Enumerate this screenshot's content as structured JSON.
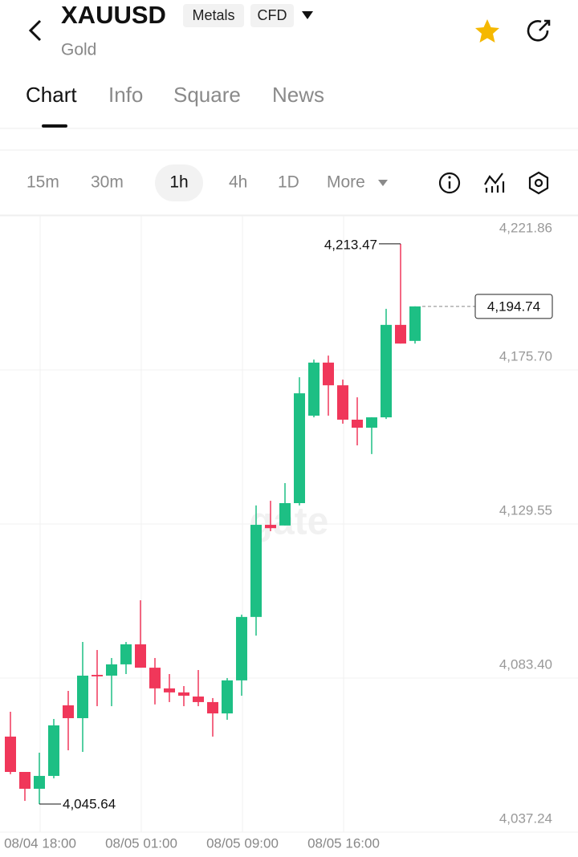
{
  "header": {
    "symbol": "XAUUSD",
    "tags": [
      "Metals",
      "CFD"
    ],
    "subtitle": "Gold"
  },
  "tabs": [
    "Chart",
    "Info",
    "Square",
    "News"
  ],
  "intervals": [
    "15m",
    "30m",
    "1h",
    "4h",
    "1D",
    "More"
  ],
  "watermark": "gate",
  "chart_data": {
    "type": "candlestick",
    "categories": [
      null,
      null,
      "08/04 18:00",
      null,
      null,
      null,
      null,
      null,
      null,
      "08/05 01:00",
      null,
      null,
      null,
      null,
      null,
      null,
      "08/05 09:00",
      null,
      null,
      null,
      null,
      null,
      null,
      "08/05 16:00",
      null,
      null,
      null,
      null,
      null
    ],
    "open": [
      4065.86,
      4055.27,
      4050.23,
      4054.08,
      4075.22,
      4071.38,
      4084.35,
      4084.12,
      4087.5,
      4093.5,
      4086.5,
      4080.3,
      4079.1,
      4077.86,
      4076.2,
      4072.8,
      4082.7,
      4101.7,
      4129.3,
      4129.1,
      4135.8,
      4162.0,
      4177.9,
      4171.1,
      4160.8,
      4158.4,
      4161.5,
      4189.2,
      4184.4
    ],
    "high": [
      4073.3,
      4055.27,
      4061.04,
      4071.14,
      4079.55,
      4094.21,
      4091.8,
      4089.4,
      4094.2,
      4106.7,
      4089.4,
      4084.6,
      4080.99,
      4085.8,
      4077.4,
      4083.4,
      4102.4,
      4135.1,
      4136.5,
      4141.8,
      4173.5,
      4178.8,
      4180.0,
      4172.8,
      4167.5,
      4161.5,
      4194.0,
      4213.47,
      4194.74
    ],
    "low": [
      4054.6,
      4046.6,
      4045.64,
      4053.36,
      4061.76,
      4061.28,
      4074.97,
      4074.97,
      4084.6,
      4086.5,
      4075.5,
      4076.2,
      4074.97,
      4074.97,
      4065.86,
      4070.9,
      4078.1,
      4096.1,
      4127.4,
      4129.1,
      4135.1,
      4161.5,
      4162.0,
      4159.6,
      4153.1,
      4150.5,
      4161.0,
      4183.6,
      4183.6
    ],
    "close": [
      4055.27,
      4050.23,
      4054.08,
      4069.22,
      4071.38,
      4084.12,
      4083.9,
      4087.5,
      4093.5,
      4086.5,
      4080.3,
      4079.1,
      4078.1,
      4076.2,
      4072.8,
      4082.7,
      4101.7,
      4129.3,
      4128.3,
      4135.8,
      4168.7,
      4177.9,
      4171.1,
      4160.8,
      4158.4,
      4161.5,
      4189.2,
      4183.6,
      4194.74
    ],
    "up_color": "#1dbf84",
    "down_color": "#f0375a",
    "ylim": [
      4037.24,
      4221.86
    ],
    "yticks": [
      {
        "value": 4221.86,
        "label": "4,221.86"
      },
      {
        "value": 4175.7,
        "label": "4,175.70"
      },
      {
        "value": 4129.55,
        "label": "4,129.55"
      },
      {
        "value": 4083.4,
        "label": "4,083.40"
      },
      {
        "value": 4037.24,
        "label": "4,037.24"
      }
    ],
    "grid": true,
    "high_marker": {
      "value": 4213.47,
      "label": "4,213.47"
    },
    "low_marker": {
      "value": 4045.64,
      "label": "4,045.64"
    },
    "last_price": {
      "value": 4194.74,
      "label": "4,194.74"
    }
  }
}
